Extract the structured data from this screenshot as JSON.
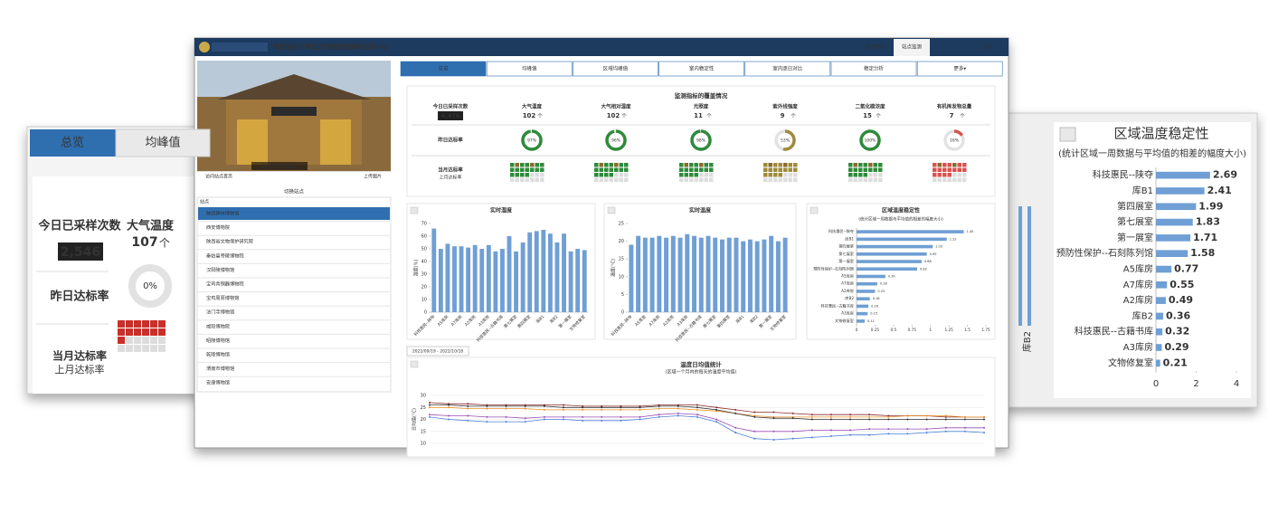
{
  "left_panel": {
    "tabs": [
      "总览",
      "均峰值"
    ],
    "sample_label": "今日已采样次数",
    "sample_count": "2,546",
    "metric": "大气温度",
    "metric_count": 107,
    "unit": "个",
    "rate": 0,
    "rate_label": "0%",
    "yesterday": "昨日达标率",
    "this_month": "当月达标率",
    "last_month": "上月达标率"
  },
  "header": {
    "title": "陕西地区可移动文物预防性保护区域中心",
    "nav": [
      "综合评估",
      "站点监测",
      "退出"
    ]
  },
  "sidebar": {
    "caption": "陕西碑林博物馆",
    "visit": "访问站点首页",
    "upload": "上传图片",
    "switch": "切换站点",
    "list_title": "站点",
    "sites": [
      "陕西碑林博物馆",
      "西安博物院",
      "陕西省文物保护研究院",
      "秦始皇帝陵博物院",
      "汉阳陵博物馆",
      "宝鸡青铜器博物院",
      "宝鸡周原博物馆",
      "法门寺博物馆",
      "咸阳博物院",
      "昭陵博物馆",
      "乾陵博物馆",
      "渭南市博物馆",
      "安康博物馆"
    ]
  },
  "tabs": [
    "总览",
    "均峰值",
    "区域均峰值",
    "室内稳定性",
    "室内逐日对比",
    "稳定分析",
    "更多▾"
  ],
  "summary": {
    "title": "监测指标的覆盖情况",
    "sample_label": "今日已采样次数",
    "sample_count": "4,476",
    "metrics": [
      "大气温度",
      "大气相对湿度",
      "光照度",
      "紫外线强度",
      "二氧化碳浓度",
      "有机挥发物总量"
    ],
    "counts": [
      102,
      102,
      11,
      9,
      15,
      7
    ],
    "unit": "个",
    "yesterday": "昨日达标率",
    "rates": [
      97,
      96,
      98,
      53,
      100,
      16
    ],
    "rate_labels": [
      "97%",
      "96%",
      "98%",
      "53%",
      "100%",
      "16%"
    ],
    "rate_colors": [
      "#2e8b3a",
      "#2e8b3a",
      "#2e8b3a",
      "#a08a3c",
      "#2e8b3a",
      "#d9534f"
    ],
    "this_month": "当月达标率",
    "last_month": "上月达标率"
  },
  "date_range": "2022/09/19 - 2022/10/18",
  "chart_data": [
    {
      "type": "bar",
      "title": "实时湿度",
      "ylabel": "湿度(%)",
      "categories": [
        "科技惠民--陕夺",
        null,
        "A5库房",
        null,
        "A7库房",
        null,
        "A2库房",
        null,
        "A3库房",
        null,
        "科技惠民--古籍书库",
        null,
        "第七展室",
        null,
        "第四展室",
        null,
        "库B1",
        null,
        "库B2",
        null,
        "第一展室",
        null,
        "文物修复室"
      ],
      "values": [
        66,
        50,
        54,
        52,
        52,
        51,
        53,
        50,
        53,
        48,
        50,
        60,
        48,
        55,
        63,
        64,
        65,
        62,
        55,
        62,
        48,
        50,
        49
      ],
      "color": "#6f9fd4",
      "ylim": [
        0,
        70
      ],
      "yticks": [
        0,
        10,
        20,
        30,
        40,
        50,
        60,
        70
      ]
    },
    {
      "type": "bar",
      "title": "实时温度",
      "ylabel": "温度(°C)",
      "categories": [
        "科技惠民--陕夺",
        null,
        "A5库房",
        null,
        "A7库房",
        null,
        "A2库房",
        null,
        "A3库房",
        null,
        "科技惠民--古籍书库",
        null,
        "第七展室",
        null,
        "第四展室",
        null,
        "库B1",
        null,
        "库B2",
        null,
        "第一展室",
        null,
        "文物修复室"
      ],
      "values": [
        19,
        21.5,
        21,
        21,
        21.5,
        21,
        21.5,
        21,
        22,
        21.5,
        21,
        21.5,
        21,
        20.5,
        21,
        21,
        20,
        20.5,
        20,
        20.5,
        21.5,
        20,
        21
      ],
      "color": "#6f9fd4",
      "ylim": [
        0,
        25
      ],
      "yticks": [
        0,
        5,
        10,
        15,
        20,
        25
      ]
    },
    {
      "type": "hbar",
      "title": "区域温度稳定性",
      "subtitle": "(统计区域一周数据与平均值的相差的幅度大小)",
      "categories": [
        "科技惠民--陕夺",
        "库B1",
        "第四展室",
        "第七展室",
        "第一展室",
        "预防性保护--石刻陈列馆",
        "A5库房",
        "A7库房",
        "A2库房",
        "库B2",
        "科技惠民--古籍书库",
        "A3库房",
        "文物修复室"
      ],
      "values": [
        1.45,
        1.22,
        1.03,
        0.95,
        0.88,
        0.82,
        0.39,
        0.28,
        0.25,
        0.18,
        0.16,
        0.15,
        0.11
      ],
      "color": "#6f9fd4",
      "xlim": [
        0,
        1.75
      ],
      "xticks": [
        0,
        0.25,
        0.5,
        0.75,
        1,
        1.25,
        1.5,
        1.75
      ]
    },
    {
      "type": "line",
      "title": "温度日均值统计",
      "subtitle": "(区域一个月内的每天的温度平均值)",
      "ylabel": "日均值(°C)",
      "ylim": [
        10,
        30
      ],
      "yticks": [
        10,
        15,
        20,
        25,
        30
      ],
      "series": [
        {
          "color": "#8b2a2a",
          "values": [
            27,
            26.5,
            26.5,
            26,
            26,
            26,
            26,
            26,
            25.5,
            25.5,
            25.5,
            25.5,
            26,
            26,
            26,
            25,
            24,
            23,
            23,
            22.5,
            22,
            22,
            22,
            22,
            21.5,
            21.5,
            21.5,
            21,
            21,
            21
          ]
        },
        {
          "color": "#e8922c",
          "values": [
            25,
            25,
            24.5,
            24.5,
            24.5,
            24.5,
            24,
            24,
            24,
            24,
            24,
            24,
            24.5,
            24.5,
            24,
            23.5,
            22.5,
            21.5,
            21,
            21,
            21,
            21,
            21,
            21,
            21,
            21.5,
            21.5,
            21.5,
            21,
            21
          ]
        },
        {
          "color": "#333333",
          "values": [
            26,
            26,
            25.5,
            25.5,
            25.5,
            25.5,
            25.5,
            25,
            25,
            25,
            25,
            25,
            25.5,
            25.5,
            25,
            24,
            22.5,
            21,
            20.5,
            20.5,
            20,
            20,
            20,
            20,
            20,
            20,
            20,
            20,
            20,
            20
          ]
        },
        {
          "color": "#9a4fb5",
          "values": [
            22,
            21.5,
            21.5,
            21,
            21,
            20.5,
            21,
            21,
            21,
            21,
            21,
            21,
            22,
            22.5,
            22,
            20,
            16.5,
            15,
            15,
            15,
            15.5,
            15.5,
            15.5,
            16,
            16,
            16,
            16,
            16.5,
            16.5,
            16.5
          ]
        },
        {
          "color": "#4f7fd6",
          "values": [
            21,
            20,
            19.5,
            19,
            19,
            19,
            20,
            20,
            19.5,
            19.5,
            19.5,
            20,
            21,
            21.5,
            21,
            19,
            14.5,
            12,
            11.5,
            12,
            12.5,
            13,
            13.5,
            13.5,
            14,
            14,
            14.5,
            15,
            15,
            14.5
          ]
        }
      ]
    },
    {
      "type": "hbar",
      "title": "区域温度稳定性",
      "subtitle": "(统计区域一周数据与平均值的相差的幅度大小)",
      "categories": [
        "科技惠民--陕夺",
        "库B1",
        "第四展室",
        "第七展室",
        "第一展室",
        "预防性保护--石刻陈列馆",
        "A5库房",
        "A7库房",
        "A2库房",
        "库B2",
        "科技惠民--古籍书库",
        "A3库房",
        "文物修复室"
      ],
      "values": [
        2.69,
        2.41,
        1.99,
        1.83,
        1.71,
        1.58,
        0.77,
        0.55,
        0.49,
        0.36,
        0.32,
        0.29,
        0.21
      ],
      "color": "#6f9fd4",
      "xlim": [
        0,
        4
      ],
      "xticks": [
        0,
        2,
        4
      ]
    },
    {
      "type": "bar",
      "categories": [
        null,
        "库B2"
      ],
      "values": [
        3.3,
        3.3
      ],
      "color": "#6f9fd4",
      "ylim": [
        0,
        4
      ]
    }
  ]
}
